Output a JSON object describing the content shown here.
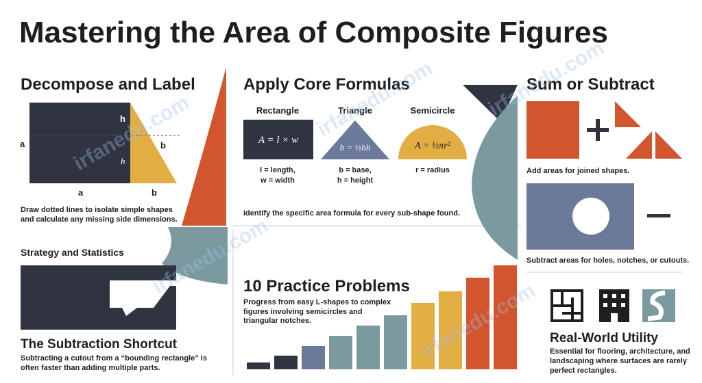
{
  "title": "Mastering the Area of Composite Figures",
  "watermark": "irfanedu.com",
  "decompose": {
    "heading": "Decompose and Label",
    "labels": [
      "h",
      "a",
      "b",
      "h",
      "a",
      "b"
    ],
    "caption": [
      "Draw dotted lines to isolate simple shapes",
      "and calculate any missing side dimensions."
    ]
  },
  "formulas": {
    "heading": "Apply Core Formulas",
    "items": [
      {
        "name": "Rectangle",
        "formula": "A = l × w",
        "notes": [
          "l = length,",
          "w = width"
        ]
      },
      {
        "name": "Triangle",
        "formula": "b = ½bh",
        "notes": [
          "b = base,",
          "h = height"
        ]
      },
      {
        "name": "Semicircle",
        "formula": "A = ½πr²",
        "notes": [
          "r = radius"
        ]
      }
    ],
    "caption": "Identify the specific area formula for every sub-shape found."
  },
  "sum": {
    "heading": "Sum or Subtract",
    "add_caption": "Add areas for joined shapes.",
    "subtract_caption": "Subtract areas for holes, notches, or cutouts."
  },
  "strategy": {
    "heading": "Strategy and Statistics",
    "subheading": "The Subtraction Shortcut",
    "caption": [
      "Subtracting a cutout from a “bounding rectangle” is",
      "often faster than adding multiple parts."
    ]
  },
  "practice": {
    "heading": "10 Practice Problems",
    "caption": [
      "Progress from easy L-shapes to complex",
      "figures involving semicircles and",
      "triangular notches."
    ]
  },
  "utility": {
    "heading": "Real-World Utility",
    "caption": [
      "Essential for flooring, architecture, and",
      "landscaping where surfaces are rarely",
      "perfect rectangles."
    ]
  }
}
